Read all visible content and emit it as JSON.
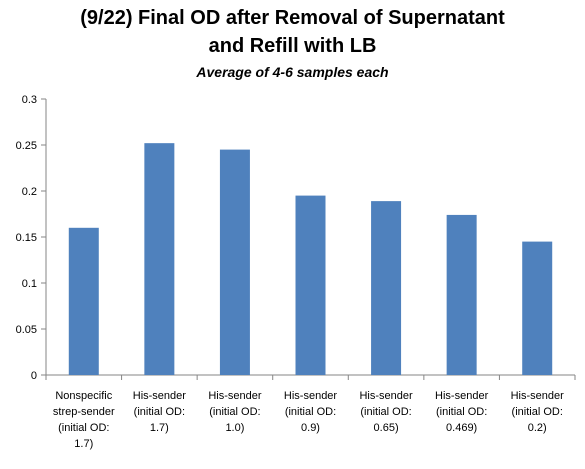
{
  "chart_data": {
    "type": "bar",
    "title_lines": [
      "(9/22) Final OD after Removal of Supernatant",
      "and Refill with LB"
    ],
    "subtitle": "Average of 4-6 samples each",
    "categories": [
      [
        "Nonspecific",
        "strep-sender",
        "(initial OD:",
        "1.7)"
      ],
      [
        "His-sender",
        "(initial OD:",
        "1.7)"
      ],
      [
        "His-sender",
        "(initial OD:",
        "1.0)"
      ],
      [
        "His-sender",
        "(initial OD:",
        "0.9)"
      ],
      [
        "His-sender",
        "(initial OD:",
        "0.65)"
      ],
      [
        "His-sender",
        "(initial OD:",
        "0.469)"
      ],
      [
        "His-sender",
        "(initial OD:",
        "0.2)"
      ]
    ],
    "values": [
      0.16,
      0.252,
      0.245,
      0.195,
      0.189,
      0.174,
      0.145
    ],
    "ylim": [
      0,
      0.3
    ],
    "yticks": [
      "0",
      "0.05",
      "0.1",
      "0.15",
      "0.2",
      "0.25",
      "0.3"
    ],
    "bar_color": "#4F81BD",
    "grid": false,
    "legend": "none"
  }
}
